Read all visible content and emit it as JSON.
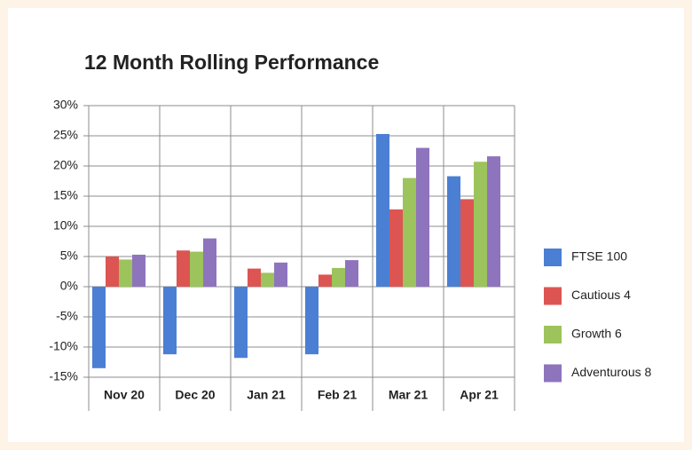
{
  "chart_data": {
    "type": "bar",
    "title": "12 Month Rolling Performance",
    "categories": [
      "Nov 20",
      "Dec 20",
      "Jan 21",
      "Feb 21",
      "Mar 21",
      "Apr 21"
    ],
    "series": [
      {
        "name": "FTSE 100",
        "color": "#4a7fd4",
        "values": [
          -13.5,
          -11.2,
          -11.8,
          -11.2,
          25.3,
          18.3
        ]
      },
      {
        "name": "Cautious 4",
        "color": "#dc5552",
        "values": [
          5,
          6,
          3,
          2,
          12.8,
          14.5
        ]
      },
      {
        "name": "Growth 6",
        "color": "#9cc35c",
        "values": [
          4.5,
          5.8,
          2.3,
          3.1,
          18,
          20.7
        ]
      },
      {
        "name": "Adventurous 8",
        "color": "#8e74bd",
        "values": [
          5.3,
          8,
          4,
          4.4,
          23,
          21.6
        ]
      }
    ],
    "ylim": [
      -15,
      30
    ],
    "yticks": [
      {
        "value": -15,
        "label": "-15%"
      },
      {
        "value": -10,
        "label": "-10%"
      },
      {
        "value": -5,
        "label": "-5%"
      },
      {
        "value": 0,
        "label": "0%"
      },
      {
        "value": 5,
        "label": "5%"
      },
      {
        "value": 10,
        "label": "10%"
      },
      {
        "value": 15,
        "label": "15%"
      },
      {
        "value": 20,
        "label": "20%"
      },
      {
        "value": 25,
        "label": "25%"
      },
      {
        "value": 30,
        "label": "30%"
      }
    ],
    "grid": true,
    "legend": "right"
  }
}
